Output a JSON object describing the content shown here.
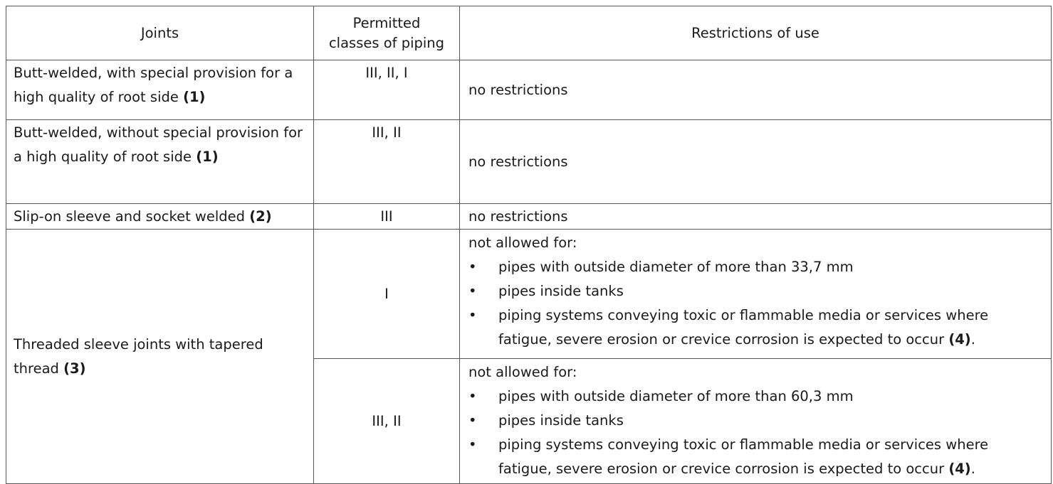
{
  "headers": {
    "joints": "Joints",
    "classes_line1": "Permitted",
    "classes_line2": "classes of piping",
    "restrictions": "Restrictions of use"
  },
  "rows": [
    {
      "joint": "Butt-welded, with special provision for a high quality of root side",
      "note": "(1)",
      "classes": "III, II, I",
      "restriction": "no restrictions"
    },
    {
      "joint": "Butt-welded, without special provision for a high quality of root side",
      "note": "(1)",
      "classes": "III, II",
      "restriction": "no restrictions"
    },
    {
      "joint": "Slip-on sleeve and socket welded",
      "note": "(2)",
      "classes": "III",
      "restriction": "no restrictions"
    }
  ],
  "threaded": {
    "joint": "Threaded sleeve joints with tapered thread",
    "note": "(3)",
    "bullet_char": "•",
    "subrows": [
      {
        "classes": "I",
        "intro": "not allowed for:",
        "bullets": [
          "pipes with outside diameter of more than 33,7 mm",
          "pipes inside tanks",
          "piping systems conveying toxic or flammable media or services where fatigue, severe erosion or crevice corrosion is expected to occur"
        ],
        "last_note": "(4)",
        "last_end": "."
      },
      {
        "classes": "III, II",
        "intro": "not allowed for:",
        "bullets": [
          "pipes with outside diameter of more than 60,3 mm",
          "pipes inside tanks",
          "piping systems conveying toxic or flammable media or services where fatigue, severe erosion or crevice corrosion is expected to occur"
        ],
        "last_note": "(4)",
        "last_end": "."
      }
    ]
  }
}
